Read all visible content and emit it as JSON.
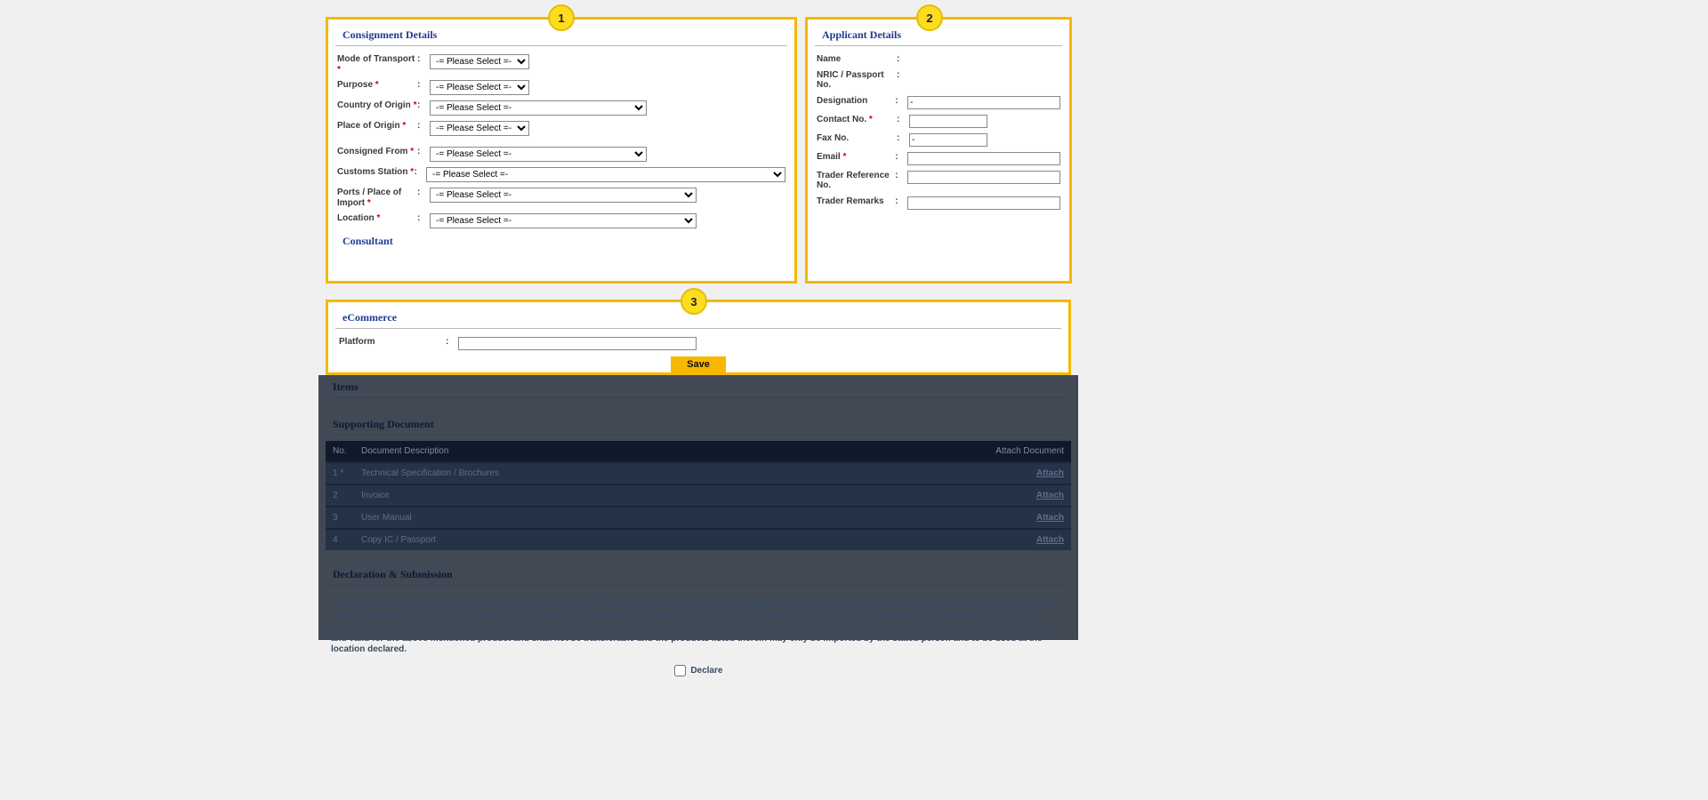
{
  "badges": {
    "b1": "1",
    "b2": "2",
    "b3": "3"
  },
  "consignment": {
    "title": "Consignment Details",
    "consultant_heading": "Consultant",
    "please_select": "-= Please Select =-",
    "fields": {
      "mode_of_transport": "Mode of Transport",
      "purpose": "Purpose",
      "country_of_origin": "Country of Origin",
      "place_of_origin": "Place of Origin",
      "consigned_from": "Consigned From",
      "customs_station": "Customs Station",
      "ports_place_import": "Ports / Place of Import",
      "location": "Location"
    }
  },
  "applicant": {
    "title": "Applicant Details",
    "fields": {
      "name": "Name",
      "nric": "NRIC / Passport No.",
      "designation": "Designation",
      "contact_no": "Contact No.",
      "fax_no": "Fax No.",
      "email": "Email",
      "trader_ref": "Trader Reference No.",
      "trader_remarks": "Trader Remarks"
    },
    "values": {
      "designation": "-",
      "fax_no": "-"
    }
  },
  "ecommerce": {
    "title": "eCommerce",
    "platform_label": "Platform",
    "save": "Save"
  },
  "dark": {
    "items": "Items",
    "supporting": "Supporting Document",
    "cols": {
      "no": "No.",
      "desc": "Document Description",
      "attach": "Attach Document"
    },
    "rows": [
      {
        "no": "1 *",
        "desc": "Technical Specification / Brochures",
        "link": "Attach"
      },
      {
        "no": "2",
        "desc": "Invoice",
        "link": "Attach"
      },
      {
        "no": "3",
        "desc": "User Manual",
        "link": "Attach"
      },
      {
        "no": "4",
        "desc": "Copy IC / Passport",
        "link": "Attach"
      }
    ],
    "declaration_title": "Declaration & Submission",
    "declaration_text": "The applicant hereby declare that all the information furnished is correct. SIRIM QAS International reserves the right to cancel this SA and CL at any time without giving any reason whatsoever. The applicant shall indemnify SIRIM QAS International against any claim for loss, damage, costs, actions, proceedings and liabilities of any nature whatsoever incurred by any third party arising out of applicant's action, omission or negligence in performing its obligations under this letter. This letter is only applicable and valid for the above mentioned product and shall not be transferable and the products listed therein may only be imported by the stated person and to be used at the location declared.",
    "declare_label": "Declare"
  },
  "colors": {
    "highlight_border": "#f6b800",
    "badge_fill": "#ffdc1f",
    "heading": "#1f3a93"
  }
}
